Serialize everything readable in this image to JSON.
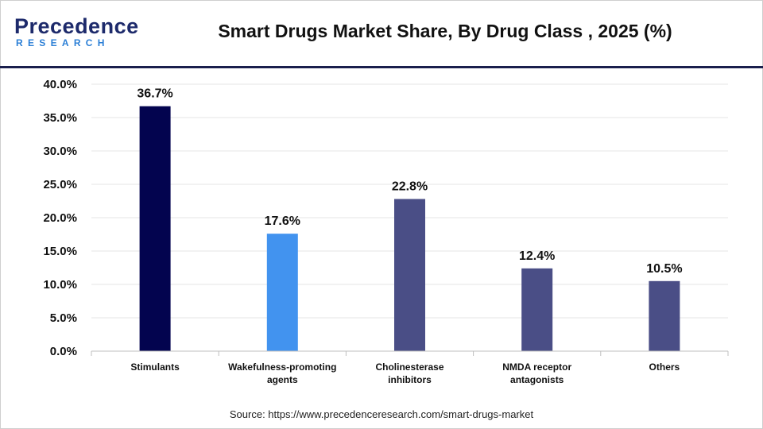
{
  "brand": {
    "name_main": "Precedence",
    "name_sub": "RESEARCH"
  },
  "title": "Smart Drugs Market Share, By  Drug Class , 2025 (%)",
  "source": "Source: https://www.precedenceresearch.com/smart-drugs-market",
  "colors": {
    "navy": "#03044f",
    "light_blue": "#4293ef",
    "slate_blue": "#4a4e86",
    "rule": "#1a1f4d",
    "grid": "#e6e6e6"
  },
  "chart_data": {
    "type": "bar",
    "title": "Smart Drugs Market Share, By  Drug Class , 2025 (%)",
    "categories": [
      [
        "Stimulants"
      ],
      [
        "Wakefulness-promoting",
        "agents"
      ],
      [
        "Cholinesterase",
        "inhibitors"
      ],
      [
        "NMDA receptor",
        "antagonists"
      ],
      [
        "Others"
      ]
    ],
    "series": [
      {
        "values": [
          36.7,
          17.6,
          22.8,
          12.4,
          10.5
        ],
        "labels": [
          "36.7%",
          "17.6%",
          "22.8%",
          "12.4%",
          "10.5%"
        ],
        "colors": [
          "#03044f",
          "#4293ef",
          "#4a4e86",
          "#4a4e86",
          "#4a4e86"
        ]
      }
    ],
    "ylim": [
      0,
      40
    ],
    "yticks": [
      "0.0%",
      "5.0%",
      "10.0%",
      "15.0%",
      "20.0%",
      "25.0%",
      "30.0%",
      "35.0%",
      "40.0%"
    ],
    "grid": true,
    "legend": "none",
    "xlabel": "",
    "ylabel": ""
  }
}
